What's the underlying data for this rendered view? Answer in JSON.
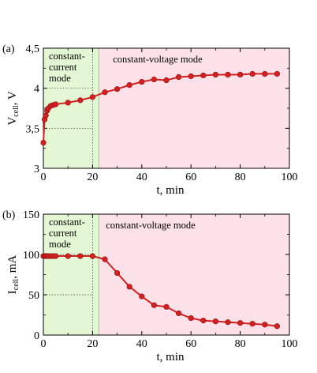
{
  "chart_data": [
    {
      "type": "line",
      "panel_label": "(a)",
      "ylabel_main": "V",
      "ylabel_sub": "cell",
      "ylabel_suffix": ", V",
      "xlabel": "t, min",
      "xlim": [
        0,
        100
      ],
      "ylim": [
        3,
        4.5
      ],
      "xticks": [
        0,
        20,
        40,
        60,
        80,
        100
      ],
      "yticks": [
        3,
        3.5,
        4,
        4.5
      ],
      "ytick_labels": [
        "3",
        "3,5",
        "4",
        "4,5"
      ],
      "regions": [
        {
          "label_lines": [
            "constant-",
            "current",
            "mode"
          ],
          "x_start": 0,
          "x_end": 22.5,
          "color": "#e3f7d4"
        },
        {
          "label_lines": [
            "constant-voltage mode"
          ],
          "x_start": 22.5,
          "x_end": 100,
          "color": "#fde1e9"
        }
      ],
      "guide_lines": {
        "x": 20,
        "y": [
          4,
          3.5
        ]
      },
      "series": [
        {
          "color": "#d42020",
          "x": [
            0,
            0.5,
            1,
            1.5,
            2,
            3,
            4,
            5,
            10,
            15,
            20,
            25,
            30,
            35,
            40,
            45,
            50,
            55,
            60,
            65,
            70,
            75,
            80,
            85,
            90,
            95
          ],
          "y": [
            3.32,
            3.61,
            3.66,
            3.72,
            3.75,
            3.78,
            3.79,
            3.8,
            3.82,
            3.85,
            3.89,
            3.95,
            3.99,
            4.04,
            4.08,
            4.11,
            4.1,
            4.14,
            4.15,
            4.16,
            4.17,
            4.17,
            4.17,
            4.18,
            4.18,
            4.18
          ]
        }
      ]
    },
    {
      "type": "line",
      "panel_label": "(b)",
      "ylabel_main": "I",
      "ylabel_sub": "cell",
      "ylabel_suffix": ", mA",
      "xlabel": "t, min",
      "xlim": [
        0,
        100
      ],
      "ylim": [
        0,
        150
      ],
      "xticks": [
        0,
        20,
        40,
        60,
        80,
        100
      ],
      "yticks": [
        0,
        50,
        100,
        150
      ],
      "ytick_labels": [
        "0",
        "50",
        "100",
        "150"
      ],
      "regions": [
        {
          "label_lines": [
            "constant-",
            "current",
            "mode"
          ],
          "x_start": 0,
          "x_end": 22.5,
          "color": "#e3f7d4"
        },
        {
          "label_lines": [
            "constant-voltage mode"
          ],
          "x_start": 22.5,
          "x_end": 100,
          "color": "#fde1e9"
        }
      ],
      "guide_lines": {
        "x": 20,
        "y": [
          100,
          50
        ]
      },
      "series": [
        {
          "color": "#d42020",
          "x": [
            0,
            0.5,
            1,
            1.5,
            2,
            3,
            4,
            5,
            10,
            15,
            20,
            25,
            30,
            35,
            40,
            45,
            50,
            55,
            60,
            65,
            70,
            75,
            80,
            85,
            90,
            95
          ],
          "y": [
            98,
            98,
            98,
            98,
            98,
            98,
            98,
            98,
            98,
            98,
            98,
            94,
            77,
            60,
            48,
            37,
            35,
            27,
            21,
            18,
            17,
            16,
            15,
            14,
            13,
            11
          ]
        }
      ]
    }
  ]
}
